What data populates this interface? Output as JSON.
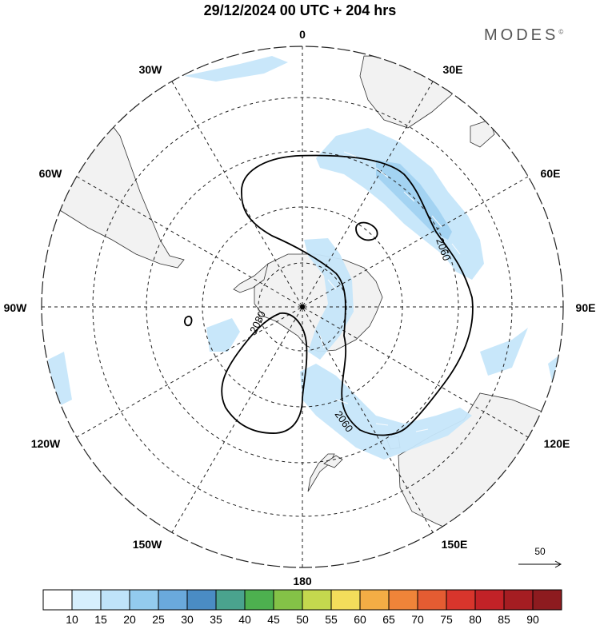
{
  "title": "29/12/2024  00 UTC  + 204 hrs",
  "brand": "MODES",
  "brand_mark": "©",
  "longitude_labels": [
    "0",
    "30E",
    "60E",
    "90E",
    "120E",
    "150E",
    "180",
    "150W",
    "120W",
    "90W",
    "60W",
    "30W"
  ],
  "contour_labels": [
    "2060",
    "2080",
    "2060"
  ],
  "colorbar": {
    "ticks": [
      "10",
      "15",
      "20",
      "25",
      "30",
      "35",
      "40",
      "45",
      "50",
      "55",
      "60",
      "65",
      "70",
      "75",
      "80",
      "85",
      "90"
    ],
    "colors": [
      "#ffffff",
      "#d6effd",
      "#bfe3f9",
      "#93cbee",
      "#6aa9dc",
      "#4a8cc4",
      "#4aa38e",
      "#4db04f",
      "#84c247",
      "#c4d84e",
      "#f3dd5b",
      "#f4ad45",
      "#ef8439",
      "#e45c32",
      "#d8352c",
      "#c22227",
      "#a51d22",
      "#8d1b1f"
    ]
  },
  "reference_vector": "50",
  "colors": {
    "land": "#f2f2f2",
    "wind_shading": "#c6e6fa",
    "wind_shading_strong": "#9fd1f2"
  }
}
